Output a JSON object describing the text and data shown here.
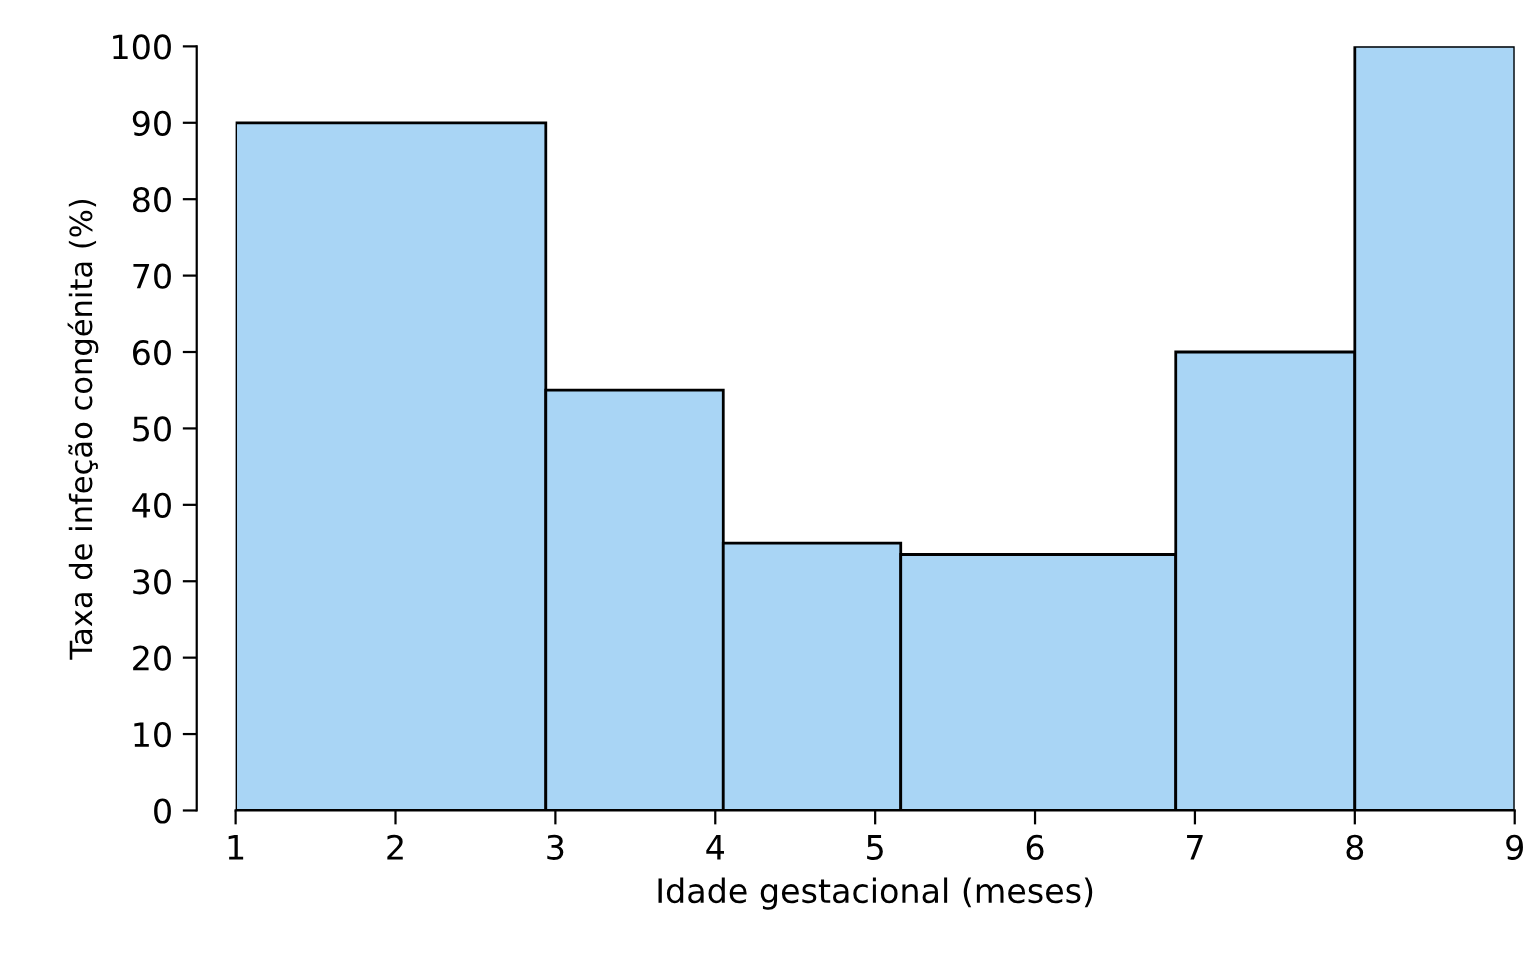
{
  "chart_data": {
    "type": "histogram",
    "xlabel": "Idade gestacional (meses)",
    "ylabel": "Taxa de infeção congénita (%)",
    "bins": [
      1,
      2.94,
      4.05,
      5.16,
      6.88,
      8.0,
      9
    ],
    "values": [
      90,
      55,
      35,
      33.5,
      60,
      100
    ],
    "color": "#a9d5f5",
    "xlim": [
      1,
      9
    ],
    "xticks": [
      1,
      2,
      3,
      4,
      5,
      6,
      7,
      8,
      9
    ],
    "ylim": [
      0,
      100
    ],
    "yticks": [
      0,
      10,
      20,
      30,
      40,
      50,
      60,
      70,
      80,
      90,
      100
    ],
    "grid": false,
    "legend": false
  }
}
